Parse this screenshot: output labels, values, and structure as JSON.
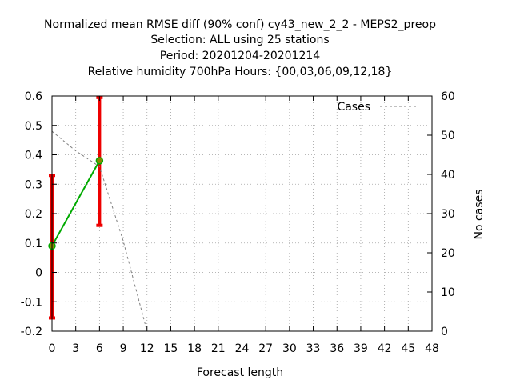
{
  "chart_data": {
    "type": "line",
    "title_lines": [
      "Normalized mean RMSE diff (90% conf) cy43_new_2_2 - MEPS2_preop",
      "Selection: ALL using    25 stations",
      "Period: 20201204-20201214",
      "Relative humidity 700hPa   Hours: {00,03,06,09,12,18}"
    ],
    "xlabel": "Forecast length",
    "ylabel": "",
    "y2label": "No cases",
    "xlim": [
      0,
      48
    ],
    "ylim": [
      -0.2,
      0.6
    ],
    "y2lim": [
      0,
      60
    ],
    "x_ticks": [
      0,
      3,
      6,
      9,
      12,
      15,
      18,
      21,
      24,
      27,
      30,
      33,
      36,
      39,
      42,
      45,
      48
    ],
    "y_ticks": [
      "-0.2",
      "-0.1",
      "0",
      "0.1",
      "0.2",
      "0.3",
      "0.4",
      "0.5",
      "0.6"
    ],
    "y2_ticks": [
      0,
      10,
      20,
      30,
      40,
      50,
      60
    ],
    "grid": true,
    "legend": {
      "position": "top-right",
      "entries": [
        "Cases"
      ]
    },
    "series": [
      {
        "kind": "rmse_diff",
        "color": "#00aa00",
        "marker_color": "#888800",
        "x": [
          0,
          6
        ],
        "y": [
          0.09,
          0.38
        ],
        "ci_low": [
          -0.155,
          0.16
        ],
        "ci_high": [
          0.33,
          0.595
        ],
        "ci_color": "#ee0000"
      },
      {
        "name": "Cases",
        "kind": "cases",
        "axis": "y2",
        "color": "#808080",
        "x": [
          0,
          3,
          6,
          9,
          12,
          15,
          18,
          21,
          24,
          27,
          30,
          33,
          36,
          39,
          42,
          45,
          48
        ],
        "y": [
          51,
          46,
          42,
          23,
          0,
          0,
          0,
          0,
          0,
          0,
          0,
          0,
          0,
          0,
          0,
          0,
          0
        ]
      }
    ]
  }
}
